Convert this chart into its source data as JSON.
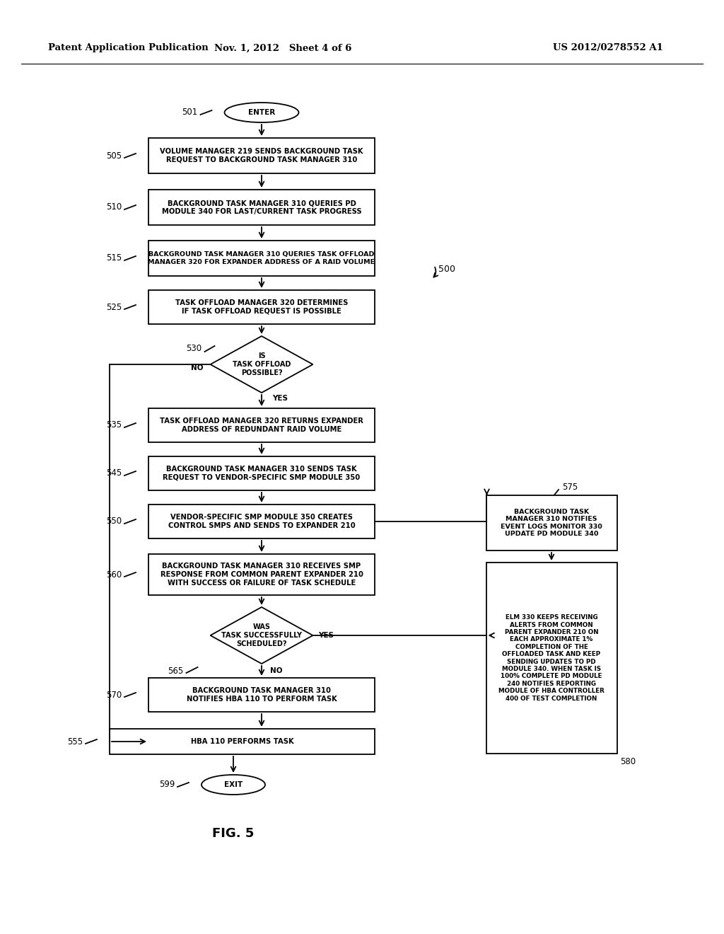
{
  "header_left": "Patent Application Publication",
  "header_mid": "Nov. 1, 2012   Sheet 4 of 6",
  "header_right": "US 2012/0278552 A1",
  "figure_label": "FIG. 5",
  "bg_color": "#ffffff",
  "line_color": "#000000"
}
